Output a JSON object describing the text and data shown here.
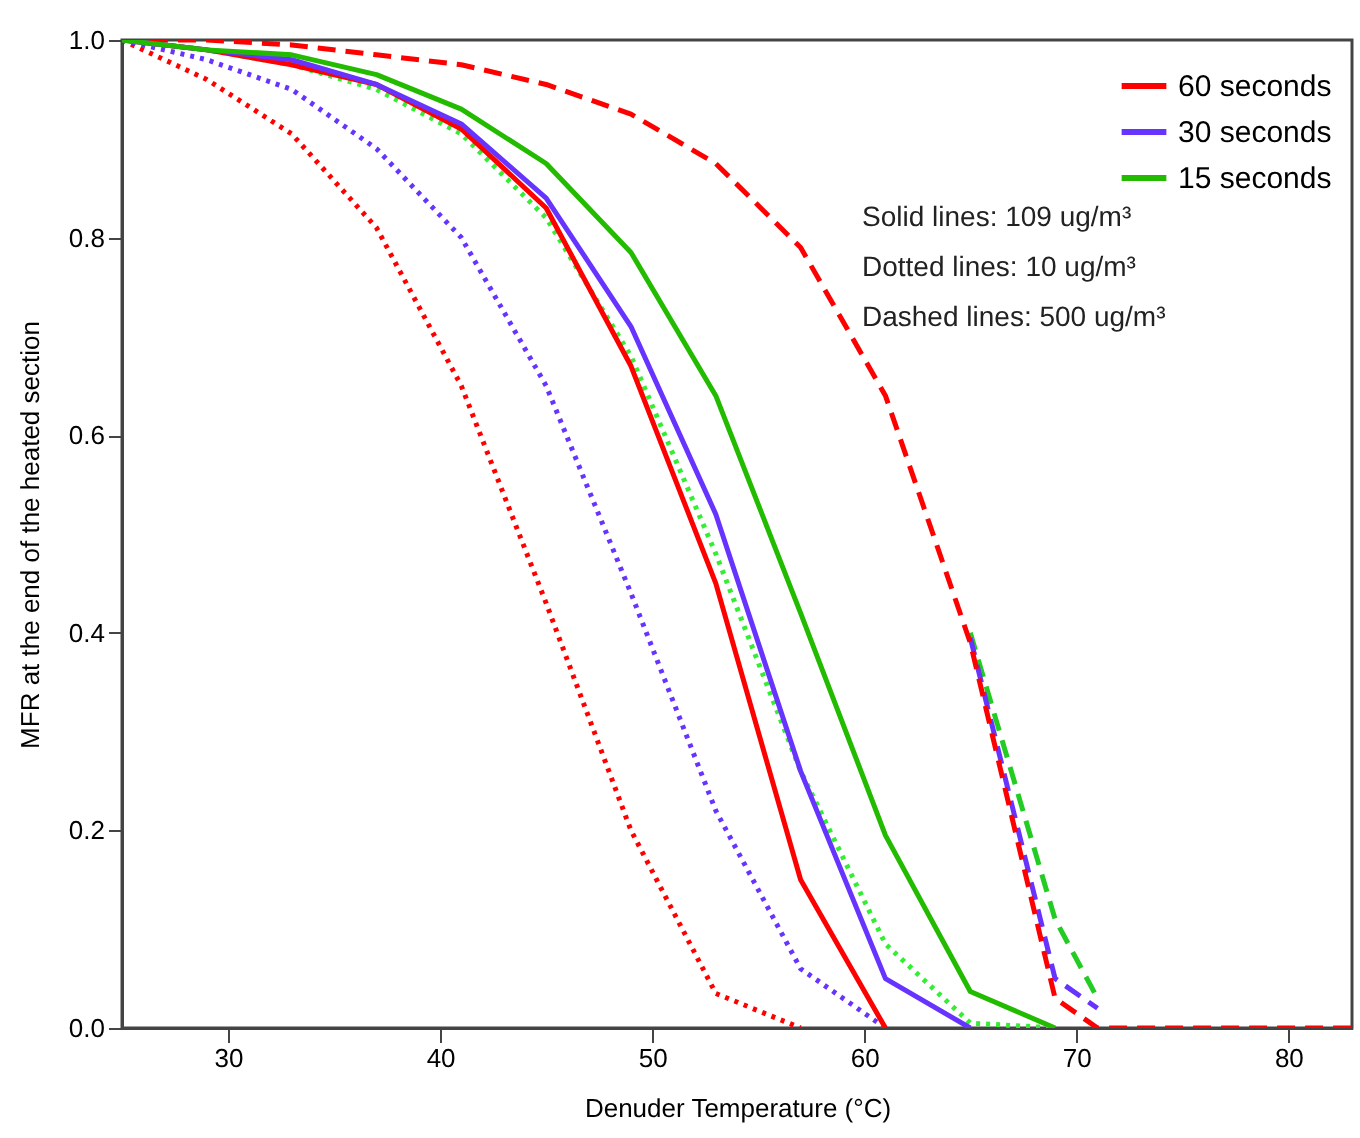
{
  "chart_data": {
    "type": "line",
    "xlabel": "Denuder Temperature (°C)",
    "ylabel": "MFR at the end of the heated section",
    "x": [
      25,
      29,
      33,
      37,
      41,
      45,
      49,
      53,
      57,
      61,
      65,
      69
    ],
    "xlim": [
      25,
      83
    ],
    "xticks": [
      30,
      40,
      50,
      60,
      70,
      80
    ],
    "ylim": [
      0,
      1
    ],
    "yticks": [
      {
        "value": 0,
        "label": "0.0"
      },
      0.2,
      0.4,
      0.6,
      0.8,
      {
        "value": 1,
        "label": "1.0"
      }
    ],
    "grid": false,
    "legend": "top right",
    "marker": "none",
    "annotations": [
      "Solid lines: 109 ug/m³",
      "Dotted lines: 10 ug/m³",
      "Dashed lines: 500 ug/m³"
    ],
    "series": [
      {
        "color": "#22cc22",
        "line_style": "dashed",
        "x": [
          65,
          69,
          71
        ],
        "values": [
          0.4,
          0.11,
          0.03
        ]
      },
      {
        "color": "#6633ff",
        "line_style": "dashed",
        "x": [
          65,
          69,
          71
        ],
        "values": [
          0.395,
          0.05,
          0.02
        ]
      },
      {
        "color": "#ff0000",
        "line_style": "dashed",
        "x": [
          25,
          29,
          33,
          37,
          41,
          45,
          49,
          53,
          57,
          61,
          65,
          69,
          71,
          73,
          77,
          81,
          83
        ],
        "values": [
          1,
          1,
          0.995,
          0.985,
          0.975,
          0.955,
          0.925,
          0.875,
          0.79,
          0.64,
          0.39,
          0.03,
          0,
          0,
          0,
          0,
          0
        ]
      },
      {
        "color": "#ff0000",
        "line_style": "dotted",
        "values": [
          1,
          0.96,
          0.905,
          0.81,
          0.65,
          0.43,
          0.2,
          0.035,
          0,
          null,
          null,
          null
        ]
      },
      {
        "color": "#6633ff",
        "line_style": "dotted",
        "values": [
          1,
          0.98,
          0.95,
          0.89,
          0.8,
          0.65,
          0.44,
          0.22,
          0.06,
          0,
          null,
          null
        ]
      },
      {
        "color": "#33ee33",
        "line_style": "dotted",
        "values": [
          1,
          0.99,
          0.975,
          0.95,
          0.905,
          0.82,
          0.68,
          0.48,
          0.26,
          0.085,
          0.005,
          0
        ]
      },
      {
        "name": "60 seconds",
        "color": "#ff0000",
        "line_style": "solid",
        "values": [
          1,
          0.99,
          0.975,
          0.955,
          0.91,
          0.83,
          0.67,
          0.45,
          0.15,
          0,
          null,
          null
        ]
      },
      {
        "name": "30 seconds",
        "color": "#6633ff",
        "line_style": "solid",
        "values": [
          1,
          0.99,
          0.98,
          0.955,
          0.915,
          0.84,
          0.71,
          0.52,
          0.26,
          0.05,
          0,
          null
        ]
      },
      {
        "name": "15 seconds",
        "color": "#22bb00",
        "line_style": "solid",
        "values": [
          1,
          0.99,
          0.985,
          0.965,
          0.93,
          0.875,
          0.785,
          0.64,
          0.42,
          0.195,
          0.037,
          0
        ]
      }
    ]
  }
}
